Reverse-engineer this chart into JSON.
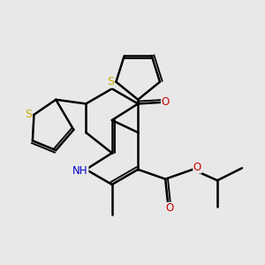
{
  "bg_color": "#e8e8e8",
  "bond_color": "#000000",
  "bond_width": 1.8,
  "atom_colors": {
    "S": "#ccaa00",
    "O": "#cc0000",
    "N": "#0000cc",
    "C": "#000000"
  },
  "font_size": 8.5,
  "fig_size": [
    3.0,
    3.0
  ],
  "dpi": 100
}
